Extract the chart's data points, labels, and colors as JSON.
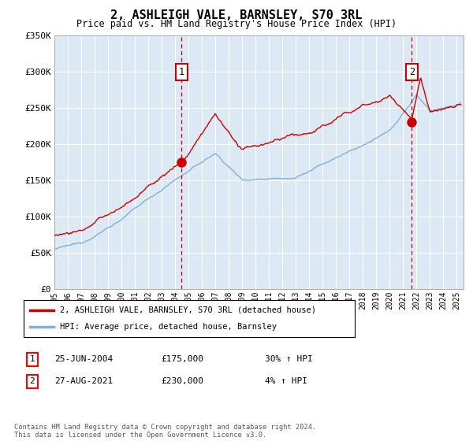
{
  "title": "2, ASHLEIGH VALE, BARNSLEY, S70 3RL",
  "subtitle": "Price paid vs. HM Land Registry's House Price Index (HPI)",
  "plot_bg_color": "#dce9f5",
  "red_line_color": "#cc0000",
  "blue_line_color": "#7fb0d8",
  "grid_color": "#ffffff",
  "marker1_x": 2004.48,
  "marker1_y": 175000,
  "marker1_label": "1",
  "marker1_date": "25-JUN-2004",
  "marker1_price": "£175,000",
  "marker1_hpi": "30% ↑ HPI",
  "marker2_x": 2021.65,
  "marker2_y": 230000,
  "marker2_label": "2",
  "marker2_date": "27-AUG-2021",
  "marker2_price": "£230,000",
  "marker2_hpi": "4% ↑ HPI",
  "ymin": 0,
  "ymax": 350000,
  "yticks": [
    0,
    50000,
    100000,
    150000,
    200000,
    250000,
    300000,
    350000
  ],
  "ytick_labels": [
    "£0",
    "£50K",
    "£100K",
    "£150K",
    "£200K",
    "£250K",
    "£300K",
    "£350K"
  ],
  "xmin": 1995,
  "xmax": 2025.5,
  "legend_label_red": "2, ASHLEIGH VALE, BARNSLEY, S70 3RL (detached house)",
  "legend_label_blue": "HPI: Average price, detached house, Barnsley",
  "footnote": "Contains HM Land Registry data © Crown copyright and database right 2024.\nThis data is licensed under the Open Government Licence v3.0."
}
